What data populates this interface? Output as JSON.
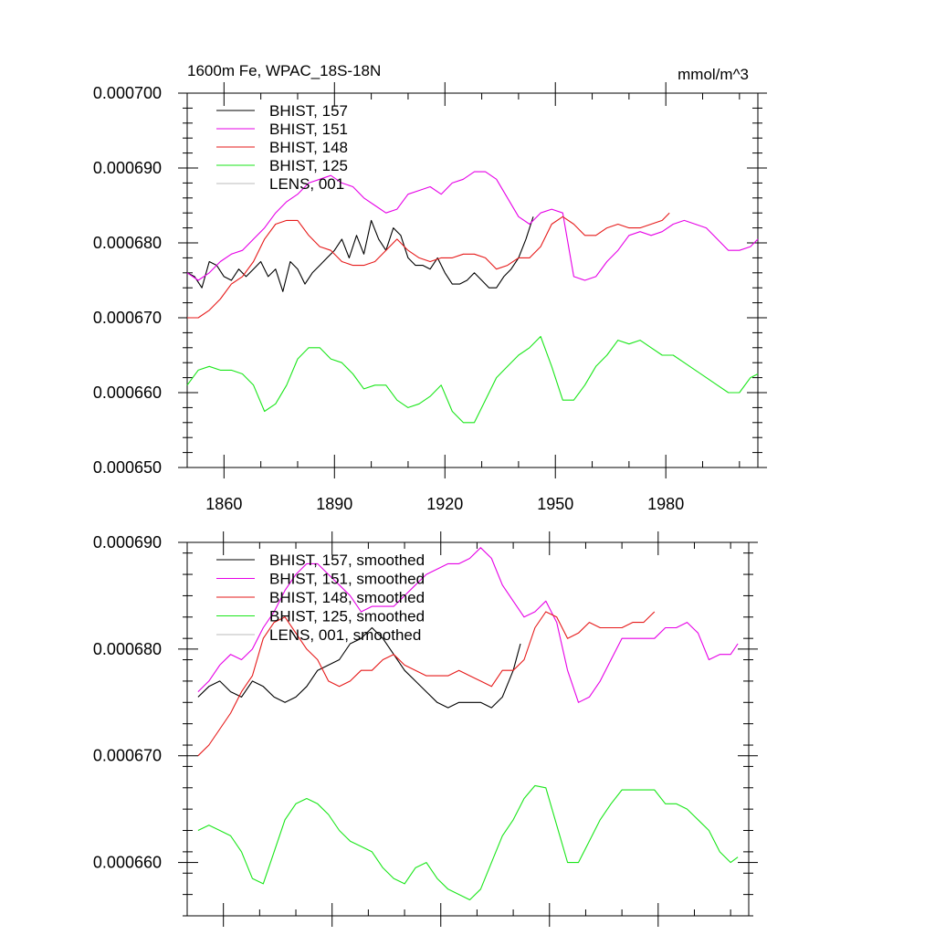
{
  "chart_data": [
    {
      "type": "line",
      "title": "1600m Fe, WPAC_18S-18N",
      "units": "mmol/m^3",
      "xlim": [
        1850,
        2005
      ],
      "ylim": [
        0.00065,
        0.0007
      ],
      "x_ticks": [
        1860,
        1890,
        1920,
        1950,
        1980
      ],
      "x_tick_labels": [
        "1860",
        "1890",
        "1920",
        "1950",
        "1980"
      ],
      "y_ticks": [
        0.00065,
        0.00066,
        0.00067,
        0.00068,
        0.00069,
        0.0007
      ],
      "y_tick_labels": [
        "0.000650",
        "0.000660",
        "0.000670",
        "0.000680",
        "0.000690",
        "0.000700"
      ],
      "legend_position": "top-left",
      "series": [
        {
          "name": "BHIST, 157",
          "color": "#000000",
          "x": [
            1850,
            1852,
            1854,
            1856,
            1858,
            1860,
            1862,
            1864,
            1866,
            1868,
            1870,
            1872,
            1874,
            1876,
            1878,
            1880,
            1882,
            1884,
            1886,
            1888,
            1890,
            1892,
            1894,
            1896,
            1898,
            1900,
            1902,
            1904,
            1906,
            1908,
            1910,
            1912,
            1914,
            1916,
            1918,
            1920,
            1922,
            1924,
            1926,
            1928,
            1930,
            1932,
            1934,
            1936,
            1938,
            1940,
            1942,
            1944
          ],
          "values": [
            0.000676,
            0.0006755,
            0.000674,
            0.0006775,
            0.000677,
            0.0006755,
            0.000675,
            0.0006765,
            0.0006755,
            0.0006765,
            0.0006775,
            0.0006755,
            0.0006765,
            0.0006735,
            0.0006775,
            0.0006765,
            0.0006745,
            0.000676,
            0.000677,
            0.000678,
            0.000679,
            0.0006805,
            0.000678,
            0.000681,
            0.0006785,
            0.000683,
            0.0006805,
            0.000679,
            0.000682,
            0.000681,
            0.000678,
            0.000677,
            0.000677,
            0.0006765,
            0.000678,
            0.000676,
            0.0006745,
            0.0006745,
            0.000675,
            0.000676,
            0.000675,
            0.000674,
            0.000674,
            0.0006755,
            0.0006765,
            0.000678,
            0.0006805,
            0.0006835
          ]
        },
        {
          "name": "BHIST, 151",
          "color": "#e600e6",
          "x": [
            1850,
            1853,
            1856,
            1859,
            1862,
            1865,
            1868,
            1871,
            1874,
            1877,
            1880,
            1883,
            1886,
            1889,
            1892,
            1895,
            1898,
            1901,
            1904,
            1907,
            1910,
            1913,
            1916,
            1919,
            1922,
            1925,
            1928,
            1931,
            1934,
            1937,
            1940,
            1943,
            1946,
            1949,
            1952,
            1955,
            1958,
            1961,
            1964,
            1967,
            1970,
            1973,
            1976,
            1979,
            1982,
            1985,
            1988,
            1991,
            1994,
            1997,
            2000,
            2003,
            2005
          ],
          "values": [
            0.000676,
            0.000675,
            0.000676,
            0.0006775,
            0.0006785,
            0.000679,
            0.0006805,
            0.000682,
            0.000684,
            0.0006855,
            0.0006865,
            0.000688,
            0.0006885,
            0.000689,
            0.000688,
            0.0006875,
            0.000686,
            0.000685,
            0.000684,
            0.0006845,
            0.0006865,
            0.000687,
            0.0006875,
            0.0006865,
            0.000688,
            0.0006885,
            0.0006895,
            0.0006895,
            0.0006885,
            0.000686,
            0.0006835,
            0.0006825,
            0.000684,
            0.0006845,
            0.000684,
            0.0006755,
            0.000675,
            0.0006755,
            0.0006775,
            0.000679,
            0.000681,
            0.0006815,
            0.000681,
            0.0006815,
            0.0006825,
            0.000683,
            0.0006825,
            0.000682,
            0.0006805,
            0.000679,
            0.000679,
            0.0006795,
            0.0006805
          ]
        },
        {
          "name": "BHIST, 148",
          "color": "#e61a1a",
          "x": [
            1850,
            1853,
            1856,
            1859,
            1862,
            1865,
            1868,
            1871,
            1874,
            1877,
            1880,
            1883,
            1886,
            1889,
            1892,
            1895,
            1898,
            1901,
            1904,
            1907,
            1910,
            1913,
            1916,
            1919,
            1922,
            1925,
            1928,
            1931,
            1934,
            1937,
            1940,
            1943,
            1946,
            1949,
            1952,
            1955,
            1958,
            1961,
            1964,
            1967,
            1970,
            1973,
            1976,
            1979,
            1981
          ],
          "values": [
            0.00067,
            0.00067,
            0.000671,
            0.0006725,
            0.0006745,
            0.0006755,
            0.0006775,
            0.0006805,
            0.0006825,
            0.000683,
            0.000683,
            0.000681,
            0.0006795,
            0.000679,
            0.0006775,
            0.000677,
            0.000677,
            0.0006775,
            0.000679,
            0.0006805,
            0.000679,
            0.000678,
            0.0006775,
            0.000678,
            0.000678,
            0.0006785,
            0.0006785,
            0.000678,
            0.0006765,
            0.000677,
            0.000678,
            0.000678,
            0.0006795,
            0.0006825,
            0.0006835,
            0.0006825,
            0.000681,
            0.000681,
            0.000682,
            0.0006825,
            0.000682,
            0.000682,
            0.0006825,
            0.000683,
            0.000684
          ]
        },
        {
          "name": "BHIST, 125",
          "color": "#1ae61a",
          "x": [
            1850,
            1853,
            1856,
            1859,
            1862,
            1865,
            1868,
            1871,
            1874,
            1877,
            1880,
            1883,
            1886,
            1889,
            1892,
            1895,
            1898,
            1901,
            1904,
            1907,
            1910,
            1913,
            1916,
            1919,
            1922,
            1925,
            1928,
            1931,
            1934,
            1937,
            1940,
            1943,
            1946,
            1949,
            1952,
            1955,
            1958,
            1961,
            1964,
            1967,
            1970,
            1973,
            1976,
            1979,
            1982,
            1985,
            1988,
            1991,
            1994,
            1997,
            2000,
            2003,
            2005
          ],
          "values": [
            0.000661,
            0.000663,
            0.0006635,
            0.000663,
            0.000663,
            0.0006625,
            0.000661,
            0.0006575,
            0.0006585,
            0.000661,
            0.0006645,
            0.000666,
            0.000666,
            0.0006645,
            0.000664,
            0.0006625,
            0.0006605,
            0.000661,
            0.000661,
            0.000659,
            0.000658,
            0.0006585,
            0.0006595,
            0.000661,
            0.0006575,
            0.000656,
            0.000656,
            0.000659,
            0.000662,
            0.0006635,
            0.000665,
            0.000666,
            0.0006675,
            0.0006635,
            0.000659,
            0.000659,
            0.000661,
            0.0006635,
            0.000665,
            0.000667,
            0.0006665,
            0.000667,
            0.000666,
            0.000665,
            0.000665,
            0.000664,
            0.000663,
            0.000662,
            0.000661,
            0.00066,
            0.00066,
            0.000662,
            0.0006625
          ]
        },
        {
          "name": "LENS, 001",
          "color": "#bbbbbb",
          "x": [],
          "values": []
        }
      ]
    },
    {
      "type": "line",
      "title": "",
      "xlim": [
        1850,
        2005
      ],
      "ylim": [
        0.000655,
        0.00069
      ],
      "x_ticks": [
        1860,
        1890,
        1920,
        1950,
        1980
      ],
      "x_tick_labels": [
        "",
        "",
        "",
        "",
        ""
      ],
      "y_ticks": [
        0.00066,
        0.00067,
        0.00068,
        0.00069
      ],
      "y_tick_labels": [
        "0.000660",
        "0.000670",
        "0.000680",
        "0.000690"
      ],
      "legend_position": "top-left",
      "series": [
        {
          "name": "BHIST, 157, smoothed",
          "color": "#000000",
          "x": [
            1853,
            1856,
            1859,
            1862,
            1865,
            1868,
            1871,
            1874,
            1877,
            1880,
            1883,
            1886,
            1889,
            1892,
            1895,
            1898,
            1901,
            1904,
            1907,
            1910,
            1913,
            1916,
            1919,
            1922,
            1925,
            1928,
            1931,
            1934,
            1937,
            1940,
            1942
          ],
          "values": [
            0.0006755,
            0.0006765,
            0.000677,
            0.000676,
            0.0006755,
            0.000677,
            0.0006765,
            0.0006755,
            0.000675,
            0.0006755,
            0.0006765,
            0.000678,
            0.0006785,
            0.000679,
            0.0006805,
            0.000681,
            0.000682,
            0.000681,
            0.0006795,
            0.000678,
            0.000677,
            0.000676,
            0.000675,
            0.0006745,
            0.000675,
            0.000675,
            0.000675,
            0.0006745,
            0.0006755,
            0.000678,
            0.0006805
          ]
        },
        {
          "name": "BHIST, 151, smoothed",
          "color": "#e600e6",
          "x": [
            1853,
            1856,
            1859,
            1862,
            1865,
            1868,
            1871,
            1874,
            1877,
            1880,
            1883,
            1886,
            1889,
            1892,
            1895,
            1898,
            1901,
            1904,
            1907,
            1910,
            1913,
            1916,
            1919,
            1922,
            1925,
            1928,
            1931,
            1934,
            1937,
            1940,
            1943,
            1946,
            1949,
            1952,
            1955,
            1958,
            1961,
            1964,
            1967,
            1970,
            1973,
            1976,
            1979,
            1982,
            1985,
            1988,
            1991,
            1994,
            1997,
            2000,
            2002
          ],
          "values": [
            0.000676,
            0.000677,
            0.0006785,
            0.0006795,
            0.000679,
            0.00068,
            0.000682,
            0.0006835,
            0.0006855,
            0.000687,
            0.000688,
            0.000688,
            0.000687,
            0.000686,
            0.000685,
            0.0006835,
            0.000684,
            0.000684,
            0.000684,
            0.000685,
            0.000686,
            0.000687,
            0.0006875,
            0.000688,
            0.000688,
            0.0006885,
            0.0006895,
            0.0006885,
            0.000686,
            0.0006845,
            0.000683,
            0.0006835,
            0.0006845,
            0.0006825,
            0.000678,
            0.000675,
            0.0006755,
            0.000677,
            0.000679,
            0.000681,
            0.000681,
            0.000681,
            0.000681,
            0.000682,
            0.000682,
            0.0006825,
            0.0006815,
            0.000679,
            0.0006795,
            0.0006795,
            0.0006805
          ]
        },
        {
          "name": "BHIST, 148, smoothed",
          "color": "#e61a1a",
          "x": [
            1853,
            1856,
            1859,
            1862,
            1865,
            1868,
            1871,
            1874,
            1877,
            1880,
            1883,
            1886,
            1889,
            1892,
            1895,
            1898,
            1901,
            1904,
            1907,
            1910,
            1913,
            1916,
            1919,
            1922,
            1925,
            1928,
            1931,
            1934,
            1937,
            1940,
            1943,
            1946,
            1949,
            1952,
            1955,
            1958,
            1961,
            1964,
            1967,
            1970,
            1973,
            1976,
            1979
          ],
          "values": [
            0.00067,
            0.000671,
            0.0006725,
            0.000674,
            0.000676,
            0.0006775,
            0.000681,
            0.0006825,
            0.000683,
            0.0006815,
            0.00068,
            0.000679,
            0.000677,
            0.0006765,
            0.000677,
            0.000678,
            0.000678,
            0.000679,
            0.0006795,
            0.0006785,
            0.000678,
            0.0006775,
            0.0006775,
            0.0006775,
            0.000678,
            0.0006775,
            0.000677,
            0.0006765,
            0.000678,
            0.000678,
            0.000679,
            0.000682,
            0.0006835,
            0.000683,
            0.000681,
            0.0006815,
            0.0006825,
            0.000682,
            0.000682,
            0.000682,
            0.0006825,
            0.0006825,
            0.0006835
          ]
        },
        {
          "name": "BHIST, 125, smoothed",
          "color": "#1ae61a",
          "x": [
            1853,
            1856,
            1859,
            1862,
            1865,
            1868,
            1871,
            1874,
            1877,
            1880,
            1883,
            1886,
            1889,
            1892,
            1895,
            1898,
            1901,
            1904,
            1907,
            1910,
            1913,
            1916,
            1919,
            1922,
            1925,
            1928,
            1931,
            1934,
            1937,
            1940,
            1943,
            1946,
            1949,
            1952,
            1955,
            1958,
            1961,
            1964,
            1967,
            1970,
            1973,
            1976,
            1979,
            1982,
            1985,
            1988,
            1991,
            1994,
            1997,
            2000,
            2002
          ],
          "values": [
            0.000663,
            0.0006635,
            0.000663,
            0.0006625,
            0.000661,
            0.0006585,
            0.000658,
            0.000661,
            0.000664,
            0.0006655,
            0.000666,
            0.0006655,
            0.0006645,
            0.000663,
            0.000662,
            0.0006615,
            0.000661,
            0.0006595,
            0.0006585,
            0.000658,
            0.0006595,
            0.00066,
            0.0006585,
            0.0006575,
            0.000657,
            0.0006565,
            0.0006575,
            0.00066,
            0.0006625,
            0.000664,
            0.000666,
            0.0006672,
            0.000667,
            0.0006635,
            0.00066,
            0.00066,
            0.000662,
            0.000664,
            0.0006655,
            0.0006668,
            0.0006668,
            0.0006668,
            0.0006668,
            0.0006655,
            0.0006655,
            0.000665,
            0.000664,
            0.000663,
            0.000661,
            0.00066,
            0.0006605
          ]
        },
        {
          "name": "LENS, 001, smoothed",
          "color": "#bbbbbb",
          "x": [],
          "values": []
        }
      ]
    }
  ]
}
